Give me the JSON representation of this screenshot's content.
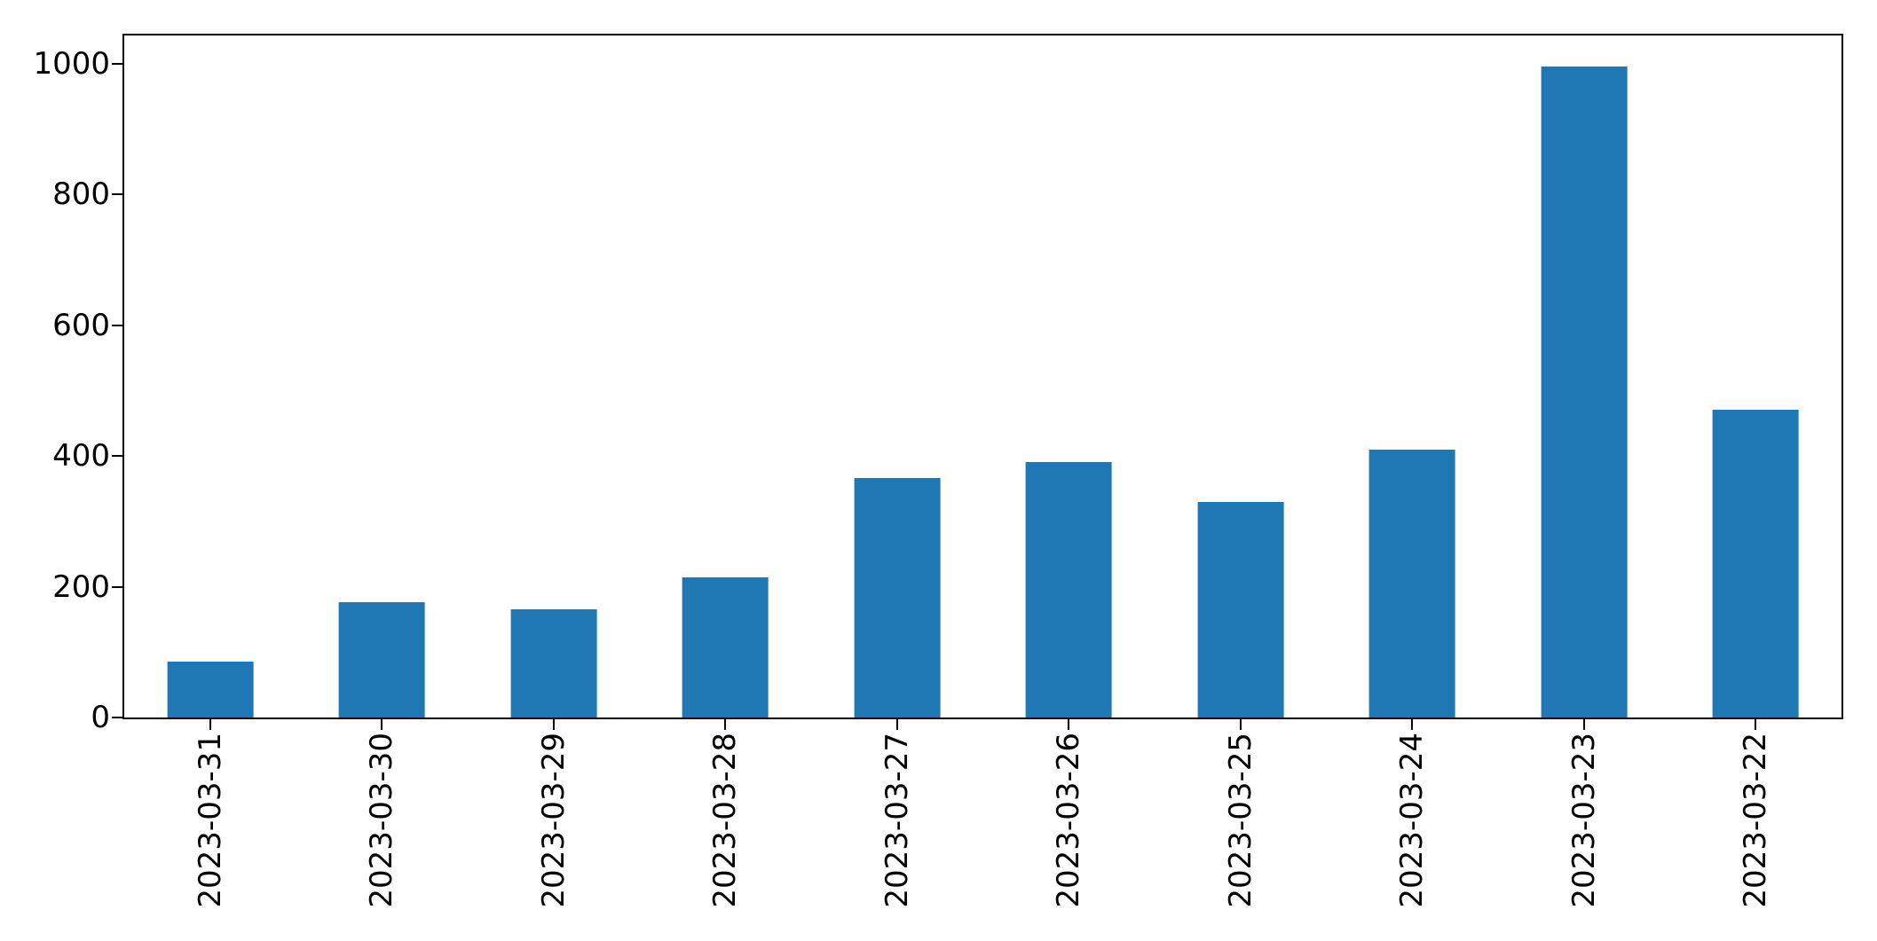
{
  "chart_data": {
    "type": "bar",
    "title": "",
    "xlabel": "",
    "ylabel": "",
    "categories": [
      "2023-03-31",
      "2023-03-30",
      "2023-03-29",
      "2023-03-28",
      "2023-03-27",
      "2023-03-26",
      "2023-03-25",
      "2023-03-24",
      "2023-03-23",
      "2023-03-22"
    ],
    "values": [
      85,
      177,
      165,
      214,
      366,
      390,
      329,
      409,
      995,
      471
    ],
    "yticks": [
      0,
      200,
      400,
      600,
      800,
      1000
    ],
    "ylim": [
      0,
      1043
    ],
    "bar_color": "#1f77b4",
    "axis_color": "#000000",
    "background_color": "#ffffff",
    "bar_width_fraction": 0.5,
    "xtick_rotation_deg": 90,
    "grid": false,
    "legend": false
  }
}
